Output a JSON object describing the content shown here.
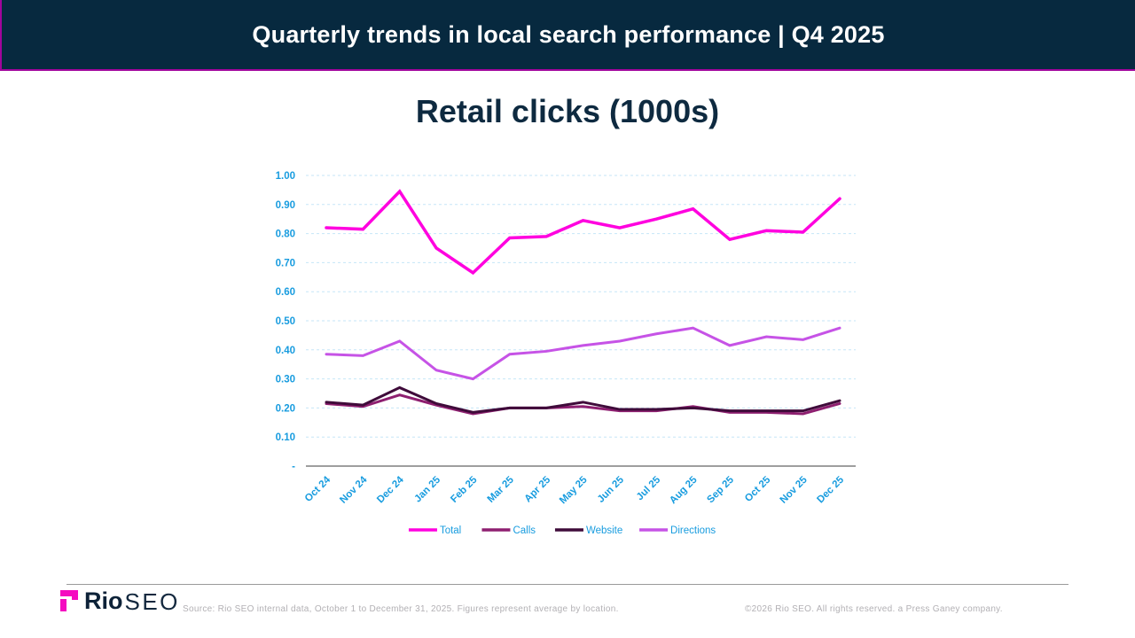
{
  "header": {
    "title": "Quarterly trends in local search performance | Q4 2025"
  },
  "chart_title": "Retail clicks (1000s)",
  "colors": {
    "header_bg": "#07293F",
    "accent_magenta_border": "#A1049C",
    "title_navy": "#0E2A40",
    "axis_text_blue": "#189CDF",
    "gridline_blue": "#C5E6F7",
    "axis_line_gray": "#7F7F7F",
    "logo_mark_magenta": "#F50CC0"
  },
  "chart_data": {
    "type": "line",
    "title": "Retail clicks (1000s)",
    "categories": [
      "Oct 24",
      "Nov 24",
      "Dec 24",
      "Jan 25",
      "Feb 25",
      "Mar 25",
      "Apr 25",
      "May 25",
      "Jun 25",
      "Jul 25",
      "Aug 25",
      "Sep 25",
      "Oct 25",
      "Nov 25",
      "Dec 25"
    ],
    "series": [
      {
        "name": "Total",
        "color": "#FF00DF",
        "line_width": 3.5,
        "values": [
          0.82,
          0.815,
          0.945,
          0.75,
          0.665,
          0.785,
          0.79,
          0.845,
          0.82,
          0.85,
          0.885,
          0.78,
          0.81,
          0.805,
          0.92
        ]
      },
      {
        "name": "Calls",
        "color": "#8E1F70",
        "line_width": 3,
        "values": [
          0.215,
          0.205,
          0.245,
          0.21,
          0.18,
          0.2,
          0.2,
          0.205,
          0.19,
          0.19,
          0.205,
          0.185,
          0.185,
          0.18,
          0.215
        ]
      },
      {
        "name": "Website",
        "color": "#3F0B3A",
        "line_width": 3,
        "values": [
          0.22,
          0.21,
          0.27,
          0.215,
          0.185,
          0.2,
          0.2,
          0.22,
          0.195,
          0.195,
          0.2,
          0.19,
          0.19,
          0.19,
          0.225
        ]
      },
      {
        "name": "Directions",
        "color": "#C653E6",
        "line_width": 3,
        "values": [
          0.385,
          0.38,
          0.43,
          0.33,
          0.3,
          0.385,
          0.395,
          0.415,
          0.43,
          0.455,
          0.475,
          0.415,
          0.445,
          0.435,
          0.475
        ]
      }
    ],
    "ylim": [
      0,
      1.0
    ],
    "ytick_values": [
      0,
      0.1,
      0.2,
      0.3,
      0.4,
      0.5,
      0.6,
      0.7,
      0.8,
      0.9,
      1.0
    ],
    "ytick_labels": [
      "-",
      "0.10",
      "0.20",
      "0.30",
      "0.40",
      "0.50",
      "0.60",
      "0.70",
      "0.80",
      "0.90",
      "1.00"
    ],
    "grid": "horizontal-dashed",
    "legend_position": "bottom",
    "legend_entries": [
      "Total",
      "Calls",
      "Website",
      "Directions"
    ]
  },
  "footer": {
    "logo_brand_bold": "Rio",
    "logo_brand_light": "SEO",
    "source_text": "Source: Rio SEO internal data, October 1 to December 31, 2025. Figures represent average by location.",
    "copyright_text": "©2026 Rio SEO.  All rights reserved. a Press Ganey company."
  }
}
